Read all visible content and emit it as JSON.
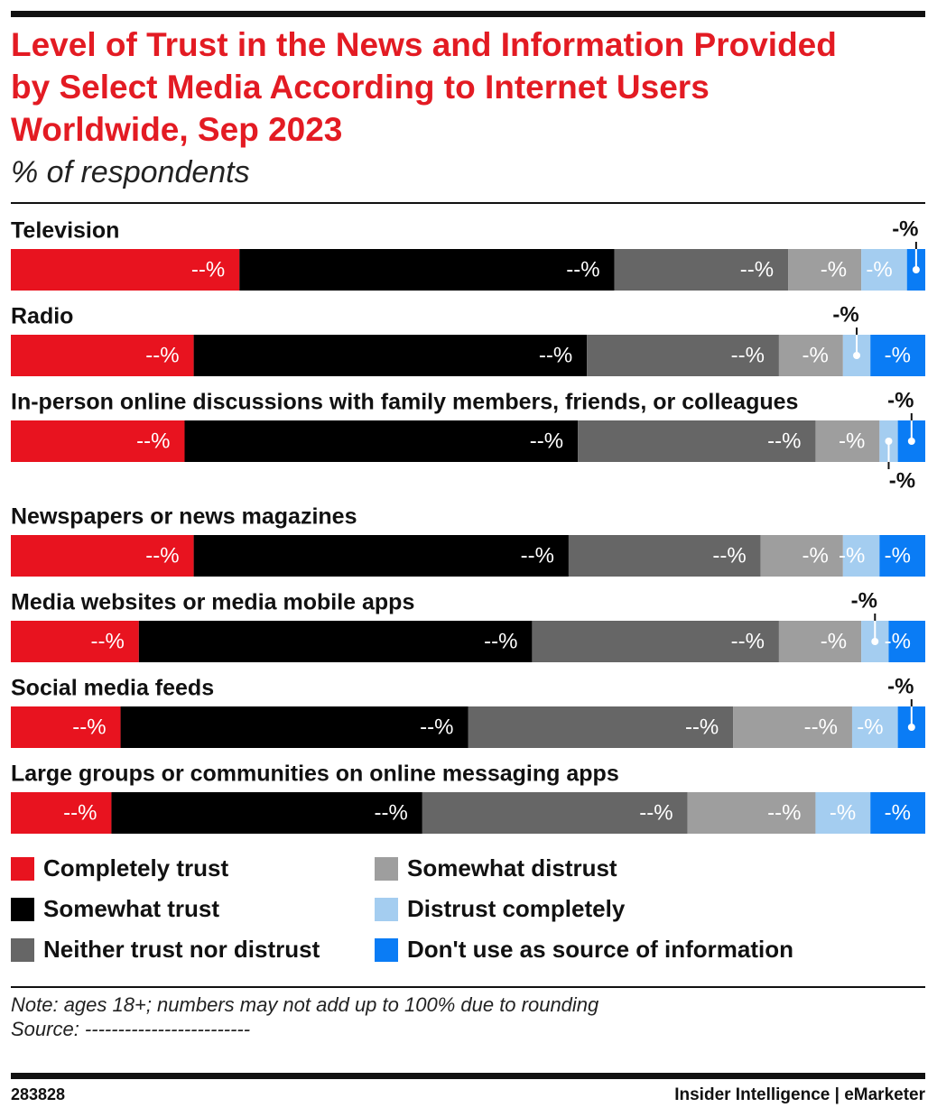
{
  "chart_data": {
    "type": "stacked-bar",
    "title": "Level of Trust in the News and Information Provided by Select Media According to Internet Users Worldwide, Sep 2023",
    "subtitle": "% of respondents",
    "categories": [
      "Television",
      "Radio",
      "In-person online discussions with family members, friends, or colleagues",
      "Newspapers or news magazines",
      "Media websites or media mobile apps",
      "Social media feeds",
      "Large groups or communities on online messaging apps"
    ],
    "series": [
      {
        "name": "Completely trust",
        "color": "#e8131f",
        "values": [
          25,
          20,
          19,
          20,
          14,
          12,
          11
        ],
        "value_labels": [
          "--%",
          "--%",
          "--%",
          "--%",
          "--%",
          "--%",
          "--%"
        ]
      },
      {
        "name": "Somewhat trust",
        "color": "#000000",
        "values": [
          41,
          43,
          43,
          41,
          43,
          38,
          34
        ],
        "value_labels": [
          "--%",
          "--%",
          "--%",
          "--%",
          "--%",
          "--%",
          "--%"
        ]
      },
      {
        "name": "Neither trust nor distrust",
        "color": "#666666",
        "values": [
          19,
          21,
          26,
          21,
          27,
          29,
          29
        ],
        "value_labels": [
          "--%",
          "--%",
          "--%",
          "--%",
          "--%",
          "--%",
          "--%"
        ]
      },
      {
        "name": "Somewhat distrust",
        "color": "#9e9e9e",
        "values": [
          8,
          7,
          7,
          9,
          9,
          13,
          14
        ],
        "value_labels": [
          "-%",
          "-%",
          "-%",
          "-%",
          "-%",
          "--%",
          "--%"
        ]
      },
      {
        "name": "Distrust completely",
        "color": "#a4cdf0",
        "values": [
          5,
          3,
          2,
          4,
          3,
          5,
          6
        ],
        "value_labels": [
          "-%",
          "-%",
          "-%",
          "-%",
          "-%",
          "-%",
          "-%"
        ]
      },
      {
        "name": "Don't use as source of information",
        "color": "#0a7cf5",
        "values": [
          2,
          6,
          3,
          5,
          4,
          3,
          6
        ],
        "value_labels": [
          "-%",
          "-%",
          "-%",
          "-%",
          "-%",
          "-%",
          "-%"
        ]
      }
    ],
    "note": "Note: ages 18+; numbers may not add up to 100% due to rounding",
    "source": "Source: -------------------------",
    "chart_id": "283828",
    "brand": "Insider Intelligence | eMarketer"
  }
}
